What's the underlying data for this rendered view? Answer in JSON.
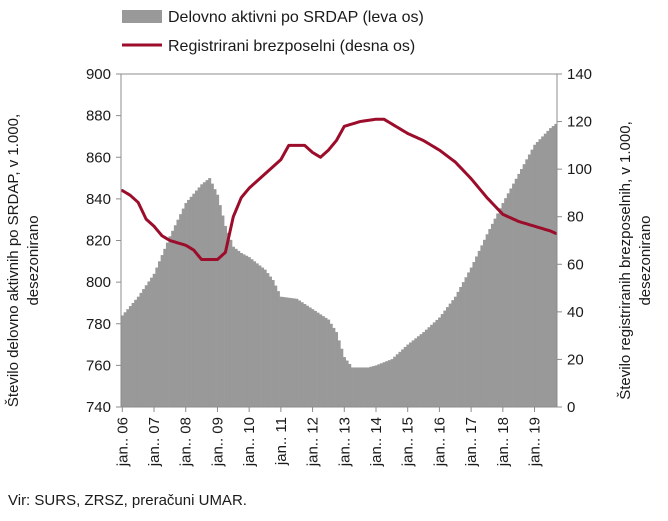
{
  "chart_data": {
    "type": "bar+line",
    "legend": {
      "position": "top",
      "entries": [
        {
          "label": "Delovno aktivni po SRDAP (leva os)",
          "kind": "area",
          "color": "#999999"
        },
        {
          "label": "Registrirani brezposelni (desna os)",
          "kind": "line",
          "color": "#9b0d2a"
        }
      ]
    },
    "left_axis": {
      "label": "Število delovno aktivnih po SRDAP, v 1.000, desezonirano",
      "label_lines": [
        "Število delovno aktivnih po SRDAP, v 1.000,",
        "desezonirano"
      ],
      "min": 740,
      "max": 900,
      "step": 20,
      "ticks": [
        "740",
        "760",
        "780",
        "800",
        "820",
        "840",
        "860",
        "880",
        "900"
      ]
    },
    "right_axis": {
      "label": "Število registriranih brezposelnih, v 1.000, desezonirano",
      "label_lines": [
        "Število registriranih brezposelnih, v 1.000,",
        "desezonirano"
      ],
      "min": 0,
      "max": 140,
      "step": 20,
      "ticks": [
        "0",
        "20",
        "40",
        "60",
        "80",
        "100",
        "120",
        "140"
      ]
    },
    "x_axis": {
      "start": "2006-01",
      "end": "2019-09",
      "tick_labels": [
        "jan.. 06",
        "jan.. 07",
        "jan.. 08",
        "jan.. 09",
        "jan.. 10",
        "jan.. 11",
        "jan.. 12",
        "jan.. 13",
        "jan.. 14",
        "jan.. 15",
        "jan.. 16",
        "jan.. 17",
        "jan.. 18",
        "jan.. 19"
      ]
    },
    "grid": false,
    "series": [
      {
        "name": "Delovno aktivni po SRDAP (leva os)",
        "axis": "left",
        "render": "bar",
        "color": "#999999",
        "points": [
          [
            "2006-01",
            784
          ],
          [
            "2006-07",
            793
          ],
          [
            "2007-01",
            804
          ],
          [
            "2007-07",
            822
          ],
          [
            "2008-01",
            838
          ],
          [
            "2008-07",
            847
          ],
          [
            "2008-10",
            850
          ],
          [
            "2009-01",
            842
          ],
          [
            "2009-04",
            827
          ],
          [
            "2009-07",
            817
          ],
          [
            "2009-10",
            814
          ],
          [
            "2010-01",
            812
          ],
          [
            "2010-07",
            806
          ],
          [
            "2010-10",
            801
          ],
          [
            "2011-01",
            793
          ],
          [
            "2011-07",
            792
          ],
          [
            "2012-01",
            787
          ],
          [
            "2012-07",
            782
          ],
          [
            "2012-10",
            776
          ],
          [
            "2013-01",
            764
          ],
          [
            "2013-04",
            759
          ],
          [
            "2013-10",
            759
          ],
          [
            "2014-01",
            760
          ],
          [
            "2014-07",
            763
          ],
          [
            "2015-01",
            770
          ],
          [
            "2015-07",
            776
          ],
          [
            "2016-01",
            783
          ],
          [
            "2016-07",
            793
          ],
          [
            "2017-01",
            807
          ],
          [
            "2017-07",
            823
          ],
          [
            "2018-01",
            838
          ],
          [
            "2018-07",
            852
          ],
          [
            "2019-01",
            866
          ],
          [
            "2019-07",
            874
          ],
          [
            "2019-09",
            876
          ]
        ]
      },
      {
        "name": "Registrirani brezposelni (desna os)",
        "axis": "right",
        "render": "line",
        "color": "#9b0d2a",
        "points": [
          [
            "2006-01",
            91
          ],
          [
            "2006-04",
            89
          ],
          [
            "2006-07",
            86
          ],
          [
            "2006-10",
            79
          ],
          [
            "2007-01",
            76
          ],
          [
            "2007-04",
            72
          ],
          [
            "2007-07",
            70
          ],
          [
            "2008-01",
            68
          ],
          [
            "2008-04",
            66
          ],
          [
            "2008-07",
            62
          ],
          [
            "2009-01",
            62
          ],
          [
            "2009-04",
            65
          ],
          [
            "2009-07",
            80
          ],
          [
            "2009-10",
            88
          ],
          [
            "2010-01",
            92
          ],
          [
            "2010-07",
            98
          ],
          [
            "2011-01",
            104
          ],
          [
            "2011-04",
            110
          ],
          [
            "2011-07",
            110
          ],
          [
            "2011-10",
            110
          ],
          [
            "2012-01",
            107
          ],
          [
            "2012-04",
            105
          ],
          [
            "2012-07",
            108
          ],
          [
            "2012-10",
            112
          ],
          [
            "2013-01",
            118
          ],
          [
            "2013-07",
            120
          ],
          [
            "2014-01",
            121
          ],
          [
            "2014-04",
            121
          ],
          [
            "2014-07",
            119
          ],
          [
            "2015-01",
            115
          ],
          [
            "2015-07",
            112
          ],
          [
            "2015-10",
            110
          ],
          [
            "2016-01",
            108
          ],
          [
            "2016-07",
            103
          ],
          [
            "2017-01",
            96
          ],
          [
            "2017-07",
            88
          ],
          [
            "2018-01",
            81
          ],
          [
            "2018-07",
            78
          ],
          [
            "2019-01",
            76
          ],
          [
            "2019-07",
            74
          ],
          [
            "2019-09",
            73
          ]
        ]
      }
    ]
  },
  "source": "Vir: SURS, ZRSZ, preračuni UMAR."
}
